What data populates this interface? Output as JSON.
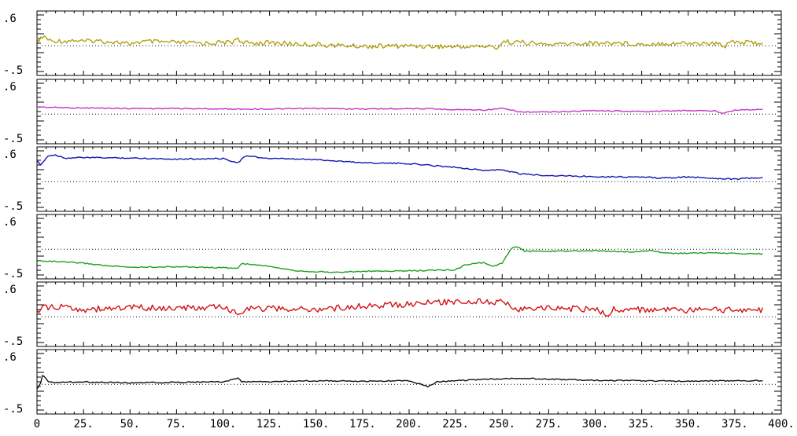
{
  "chart_data": {
    "type": "line",
    "layout": "stacked-panels",
    "x_ticks": [
      "0",
      "25.",
      "50.",
      "75.",
      "100.",
      "125.",
      "150.",
      "175.",
      "200.",
      "225.",
      "250.",
      "275.",
      "300.",
      "325.",
      "350.",
      "375.",
      "400."
    ],
    "xlim": [
      0,
      400
    ],
    "grid": false,
    "panels": [
      {
        "color": "#b5a012",
        "ylim": [
          -0.5,
          0.6
        ],
        "y_tick_labels": [
          ".6",
          "-.5"
        ],
        "reference_line": 0.0,
        "points": [
          [
            0,
            0.1
          ],
          [
            2,
            0.13
          ],
          [
            4,
            0.18
          ],
          [
            6,
            0.12
          ],
          [
            8,
            0.08
          ],
          [
            10,
            0.1
          ],
          [
            15,
            0.09
          ],
          [
            20,
            0.11
          ],
          [
            25,
            0.08
          ],
          [
            30,
            0.1
          ],
          [
            40,
            0.08
          ],
          [
            48,
            0.05
          ],
          [
            50,
            -0.02
          ],
          [
            52,
            0.07
          ],
          [
            60,
            0.08
          ],
          [
            75,
            0.06
          ],
          [
            90,
            0.05
          ],
          [
            105,
            0.07
          ],
          [
            108,
            0.17
          ],
          [
            110,
            0.05
          ],
          [
            125,
            0.06
          ],
          [
            150,
            0.02
          ],
          [
            175,
            -0.01
          ],
          [
            200,
            0.0
          ],
          [
            225,
            -0.02
          ],
          [
            240,
            -0.01
          ],
          [
            248,
            -0.03
          ],
          [
            250,
            0.08
          ],
          [
            260,
            0.07
          ],
          [
            275,
            0.02
          ],
          [
            290,
            0.04
          ],
          [
            300,
            0.05
          ],
          [
            310,
            0.06
          ],
          [
            325,
            0.03
          ],
          [
            335,
            0.05
          ],
          [
            350,
            0.05
          ],
          [
            365,
            0.04
          ],
          [
            370,
            0.0
          ],
          [
            372,
            0.1
          ],
          [
            380,
            0.06
          ],
          [
            390,
            0.06
          ]
        ]
      },
      {
        "color": "#c832c8",
        "ylim": [
          -0.5,
          0.6
        ],
        "y_tick_labels": [
          ".6",
          "-.5"
        ],
        "reference_line": 0.0,
        "points": [
          [
            0,
            0.14
          ],
          [
            10,
            0.13
          ],
          [
            25,
            0.12
          ],
          [
            50,
            0.11
          ],
          [
            75,
            0.11
          ],
          [
            100,
            0.1
          ],
          [
            125,
            0.1
          ],
          [
            150,
            0.11
          ],
          [
            175,
            0.1
          ],
          [
            200,
            0.11
          ],
          [
            225,
            0.09
          ],
          [
            240,
            0.08
          ],
          [
            250,
            0.11
          ],
          [
            260,
            0.04
          ],
          [
            275,
            0.04
          ],
          [
            300,
            0.07
          ],
          [
            325,
            0.05
          ],
          [
            350,
            0.07
          ],
          [
            365,
            0.06
          ],
          [
            368,
            0.02
          ],
          [
            375,
            0.08
          ],
          [
            390,
            0.09
          ]
        ]
      },
      {
        "color": "#1414b4",
        "ylim": [
          -0.5,
          0.6
        ],
        "y_tick_labels": [
          ".6",
          "-.5"
        ],
        "reference_line": 0.0,
        "points": [
          [
            0,
            0.4
          ],
          [
            2,
            0.32
          ],
          [
            4,
            0.42
          ],
          [
            6,
            0.5
          ],
          [
            10,
            0.52
          ],
          [
            15,
            0.46
          ],
          [
            25,
            0.47
          ],
          [
            50,
            0.46
          ],
          [
            75,
            0.44
          ],
          [
            100,
            0.45
          ],
          [
            108,
            0.37
          ],
          [
            112,
            0.5
          ],
          [
            125,
            0.45
          ],
          [
            150,
            0.43
          ],
          [
            175,
            0.37
          ],
          [
            200,
            0.35
          ],
          [
            225,
            0.28
          ],
          [
            240,
            0.22
          ],
          [
            250,
            0.23
          ],
          [
            260,
            0.15
          ],
          [
            275,
            0.12
          ],
          [
            300,
            0.1
          ],
          [
            325,
            0.09
          ],
          [
            335,
            0.07
          ],
          [
            350,
            0.09
          ],
          [
            375,
            0.05
          ],
          [
            390,
            0.08
          ]
        ]
      },
      {
        "color": "#1ea01e",
        "ylim": [
          -0.5,
          0.6
        ],
        "y_tick_labels": [
          ".6",
          "-.5"
        ],
        "reference_line": 0.0,
        "points": [
          [
            0,
            -0.22
          ],
          [
            10,
            -0.24
          ],
          [
            25,
            -0.27
          ],
          [
            40,
            -0.33
          ],
          [
            50,
            -0.35
          ],
          [
            75,
            -0.34
          ],
          [
            100,
            -0.36
          ],
          [
            108,
            -0.37
          ],
          [
            110,
            -0.28
          ],
          [
            125,
            -0.33
          ],
          [
            140,
            -0.42
          ],
          [
            160,
            -0.45
          ],
          [
            175,
            -0.43
          ],
          [
            200,
            -0.42
          ],
          [
            225,
            -0.4
          ],
          [
            230,
            -0.3
          ],
          [
            240,
            -0.26
          ],
          [
            245,
            -0.34
          ],
          [
            250,
            -0.27
          ],
          [
            255,
            0.02
          ],
          [
            258,
            0.05
          ],
          [
            262,
            -0.04
          ],
          [
            275,
            -0.04
          ],
          [
            300,
            -0.03
          ],
          [
            320,
            -0.05
          ],
          [
            330,
            -0.03
          ],
          [
            340,
            -0.08
          ],
          [
            360,
            -0.07
          ],
          [
            375,
            -0.08
          ],
          [
            390,
            -0.09
          ]
        ]
      },
      {
        "color": "#d21414",
        "ylim": [
          -0.5,
          0.6
        ],
        "y_tick_labels": [
          ".6",
          "-.5"
        ],
        "reference_line": 0.0,
        "points": [
          [
            0,
            0.1
          ],
          [
            5,
            0.2
          ],
          [
            10,
            0.16
          ],
          [
            15,
            0.2
          ],
          [
            25,
            0.14
          ],
          [
            50,
            0.18
          ],
          [
            75,
            0.16
          ],
          [
            100,
            0.19
          ],
          [
            108,
            0.05
          ],
          [
            112,
            0.17
          ],
          [
            125,
            0.16
          ],
          [
            150,
            0.14
          ],
          [
            175,
            0.21
          ],
          [
            200,
            0.25
          ],
          [
            225,
            0.3
          ],
          [
            240,
            0.3
          ],
          [
            245,
            0.24
          ],
          [
            250,
            0.32
          ],
          [
            255,
            0.2
          ],
          [
            260,
            0.14
          ],
          [
            275,
            0.17
          ],
          [
            300,
            0.15
          ],
          [
            308,
            0.02
          ],
          [
            310,
            0.15
          ],
          [
            325,
            0.14
          ],
          [
            350,
            0.12
          ],
          [
            375,
            0.14
          ],
          [
            390,
            0.13
          ]
        ]
      },
      {
        "color": "#111111",
        "ylim": [
          -0.5,
          0.6
        ],
        "y_tick_labels": [
          ".6",
          "-.5"
        ],
        "reference_line": 0.0,
        "points": [
          [
            0,
            -0.1
          ],
          [
            2,
            0.02
          ],
          [
            3,
            0.18
          ],
          [
            6,
            0.06
          ],
          [
            10,
            0.04
          ],
          [
            25,
            0.05
          ],
          [
            50,
            0.03
          ],
          [
            75,
            0.04
          ],
          [
            100,
            0.05
          ],
          [
            108,
            0.12
          ],
          [
            110,
            0.05
          ],
          [
            125,
            0.05
          ],
          [
            150,
            0.07
          ],
          [
            175,
            0.06
          ],
          [
            200,
            0.07
          ],
          [
            210,
            -0.04
          ],
          [
            215,
            0.05
          ],
          [
            240,
            0.1
          ],
          [
            260,
            0.12
          ],
          [
            275,
            0.1
          ],
          [
            300,
            0.08
          ],
          [
            325,
            0.07
          ],
          [
            350,
            0.06
          ],
          [
            375,
            0.07
          ],
          [
            390,
            0.07
          ]
        ]
      }
    ]
  }
}
